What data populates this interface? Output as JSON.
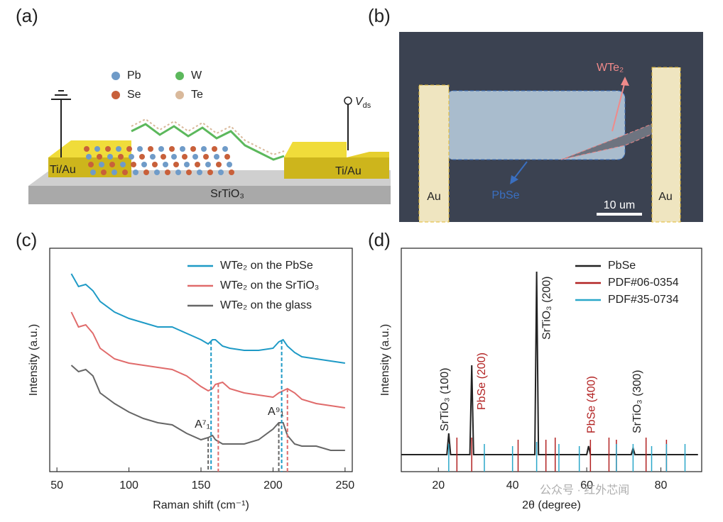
{
  "panel_a": {
    "label": "(a)",
    "legend": [
      {
        "name": "Pb",
        "color": "#6f9bc8"
      },
      {
        "name": "W",
        "color": "#5cb85c"
      },
      {
        "name": "Se",
        "color": "#c8603a"
      },
      {
        "name": "Te",
        "color": "#d9b99b"
      }
    ],
    "electrode_left": "Ti/Au",
    "electrode_right": "Ti/Au",
    "substrate": "SrTiO₃",
    "voltage": {
      "symbol": "V",
      "subscript": "ds"
    }
  },
  "panel_b": {
    "label": "(b)",
    "flake": "WTe₂",
    "crystal": "PbSe",
    "electrode_left": "Au",
    "electrode_right": "Au",
    "scale_bar": "10 um"
  },
  "chart_data": [
    {
      "panel_label": "(c)",
      "type": "line",
      "xlabel": "Raman shift (cm⁻¹)",
      "ylabel": "Intensity (a.u.)",
      "xlim": [
        45,
        255
      ],
      "xticks": [
        50,
        100,
        150,
        200,
        250
      ],
      "ylim": [
        0,
        105
      ],
      "legend": "upper right",
      "x": [
        60,
        65,
        70,
        75,
        80,
        90,
        100,
        110,
        120,
        130,
        140,
        150,
        155,
        158,
        160,
        165,
        170,
        180,
        190,
        200,
        204,
        207,
        210,
        215,
        220,
        230,
        240,
        250
      ],
      "series": [
        {
          "name": "WTe₂ on the PbSe",
          "color": "#1e9ac6",
          "values": [
            93,
            87,
            88,
            85,
            80,
            75,
            72,
            70,
            68,
            68,
            65,
            62,
            60,
            62,
            62,
            59,
            58,
            57,
            57,
            58,
            61,
            62,
            59,
            56,
            54,
            53,
            52,
            51
          ]
        },
        {
          "name": "WTe₂ on the SrTiO₃",
          "color": "#e06b6b",
          "values": [
            75,
            68,
            69,
            65,
            58,
            53,
            51,
            50,
            49,
            48,
            45,
            40,
            38,
            39,
            41,
            42,
            39,
            37,
            36,
            35,
            37,
            38,
            39,
            37,
            34,
            32,
            31,
            30
          ]
        },
        {
          "name": "WTe₂ on the glass",
          "color": "#666666",
          "values": [
            50,
            47,
            48,
            45,
            37,
            32,
            28,
            25,
            23,
            22,
            18,
            15,
            16,
            17,
            15,
            13,
            13,
            13,
            15,
            20,
            23,
            23,
            17,
            13,
            12,
            12,
            10,
            10
          ]
        }
      ],
      "peak_lines": [
        {
          "x": 157,
          "series": 0
        },
        {
          "x": 206,
          "series": 0
        },
        {
          "x": 162,
          "series": 1
        },
        {
          "x": 210,
          "series": 1
        },
        {
          "x": 155,
          "series": 2
        },
        {
          "x": 204,
          "series": 2
        }
      ],
      "peak_labels": [
        {
          "text": "A⁷₁",
          "x": 151,
          "y": 22
        },
        {
          "text": "A⁹₁",
          "x": 202,
          "y": 28
        }
      ]
    },
    {
      "panel_label": "(d)",
      "type": "line",
      "xlabel": "2θ (degree)",
      "ylabel": "Intensity (a.u.)",
      "xlim": [
        10,
        91
      ],
      "xticks": [
        20,
        40,
        60,
        80
      ],
      "ylim": [
        0,
        105
      ],
      "legend": "upper right",
      "series": [
        {
          "name": "PbSe",
          "color": "#222222",
          "type": "line",
          "x": [
            10,
            22.3,
            22.8,
            23.3,
            28.5,
            29,
            29.5,
            46,
            46.5,
            47,
            60,
            60.5,
            61,
            72,
            72.5,
            73,
            90
          ],
          "values": [
            8,
            8,
            18,
            8,
            8,
            50,
            8,
            8,
            94,
            8,
            8,
            12,
            8,
            8,
            11,
            8,
            8
          ]
        },
        {
          "name": "PDF#06-0354",
          "color": "#b22222",
          "type": "sticks",
          "x": [
            25,
            29,
            41.5,
            49,
            51.5,
            61,
            66,
            68,
            76,
            81.5
          ],
          "values": [
            16,
            16,
            15,
            15,
            16,
            15,
            16,
            15,
            16,
            15
          ]
        },
        {
          "name": "PDF#35-0734",
          "color": "#2aa7c9",
          "type": "sticks",
          "x": [
            22.8,
            32.4,
            40,
            46.5,
            52.5,
            58,
            68,
            72.5,
            77.5,
            81.5,
            86.5
          ],
          "values": [
            13,
            13,
            12,
            14,
            13,
            12,
            13,
            13,
            12,
            13,
            13
          ]
        }
      ],
      "annotations": [
        {
          "text": "SrTiO₃ (100)",
          "x": 21.8,
          "y": 19,
          "color": "#222222"
        },
        {
          "text": "PbSe (200)",
          "x": 31.8,
          "y": 29,
          "color": "#b22222"
        },
        {
          "text": "SrTiO₃ (200)",
          "x": 49.3,
          "y": 62,
          "color": "#222222"
        },
        {
          "text": "PbSe (400)",
          "x": 61.4,
          "y": 18,
          "color": "#b22222"
        },
        {
          "text": "SrTiO₃ (300)",
          "x": 73.7,
          "y": 18,
          "color": "#222222"
        }
      ]
    }
  ],
  "watermark": "公众号 · 红外芯闻"
}
